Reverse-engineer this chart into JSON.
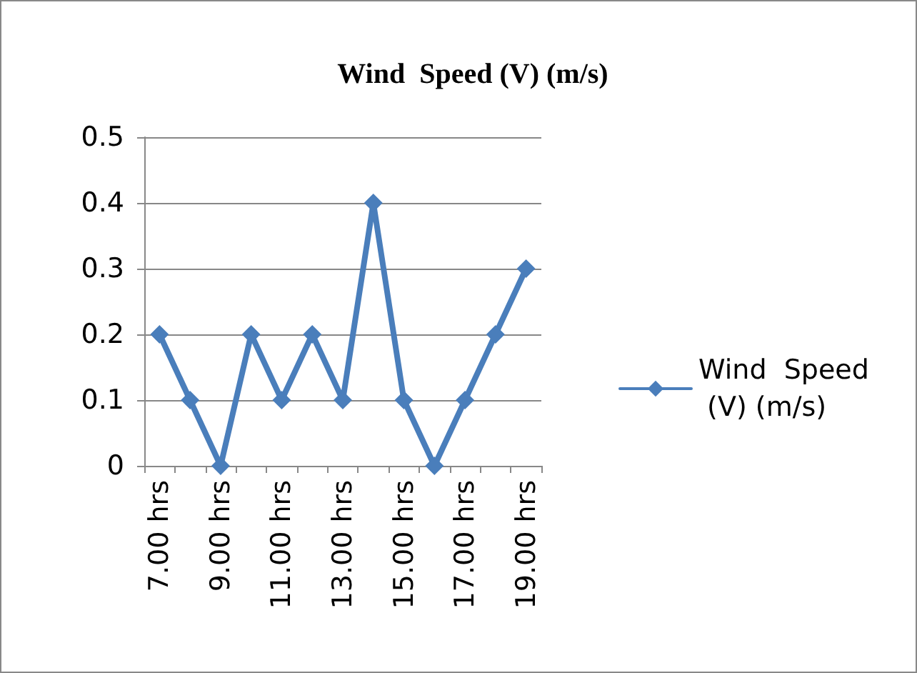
{
  "chart_data": {
    "type": "line",
    "title": "Wind  Speed (V) (m/s)",
    "categories": [
      "7.00 hrs",
      null,
      "9.00 hrs",
      null,
      "11.00 hrs",
      null,
      "13.00 hrs",
      null,
      "15.00 hrs",
      null,
      "17.00 hrs",
      null,
      "19.00 hrs"
    ],
    "series": [
      {
        "name": "Wind  Speed (V) (m/s)",
        "color": "#4a7ebb",
        "values": [
          0.2,
          0.1,
          0,
          0.2,
          0.1,
          0.2,
          0.1,
          0.4,
          0.1,
          0,
          0.1,
          0.2,
          0.3
        ]
      }
    ],
    "ylim": [
      0,
      0.5
    ],
    "yticks": [
      0,
      0.1,
      0.2,
      0.3,
      0.4,
      0.5
    ],
    "grid": "y",
    "legend": "right",
    "marker": "diamond",
    "line_style": "solid"
  }
}
